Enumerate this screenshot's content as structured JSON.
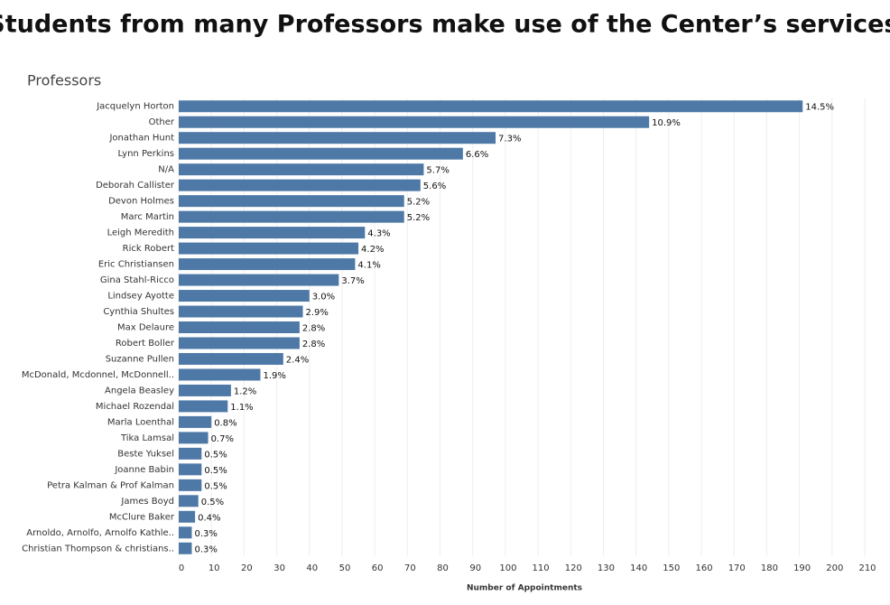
{
  "chart_data": {
    "type": "bar",
    "orientation": "horizontal",
    "title": "Students from many Professors make use of the Center’s services.",
    "y_label": "Professors",
    "x_label": "Number of Appointments",
    "categories": [
      "Jacquelyn Horton",
      "Other",
      "Jonathan Hunt",
      "Lynn Perkins",
      "N/A",
      "Deborah Callister",
      "Devon Holmes",
      "Marc Martin",
      "Leigh Meredith",
      "Rick Robert",
      "Eric Christiansen",
      "Gina Stahl-Ricco",
      "Lindsey Ayotte",
      "Cynthia Shultes",
      "Max Delaure",
      "Robert Boller",
      "Suzanne Pullen",
      "McDonald, Mcdonnel, McDonnell..",
      "Angela Beasley",
      "Michael Rozendal",
      "Marla Loenthal",
      "Tika Lamsal",
      "Beste Yuksel",
      "Joanne Babin",
      "Petra Kalman & Prof Kalman",
      "James Boyd",
      "McClure Baker",
      "Arnoldo, Arnolfo, Arnolfo Kathle..",
      "Christian Thompson & christians.."
    ],
    "values": [
      191,
      144,
      97,
      87,
      75,
      74,
      69,
      69,
      57,
      55,
      54,
      49,
      40,
      38,
      37,
      37,
      32,
      25,
      16,
      15,
      10,
      9,
      7,
      7,
      7,
      6,
      5,
      4,
      4
    ],
    "value_labels": [
      "14.5%",
      "10.9%",
      "7.3%",
      "6.6%",
      "5.7%",
      "5.6%",
      "5.2%",
      "5.2%",
      "4.3%",
      "4.2%",
      "4.1%",
      "3.7%",
      "3.0%",
      "2.9%",
      "2.8%",
      "2.8%",
      "2.4%",
      "1.9%",
      "1.2%",
      "1.1%",
      "0.8%",
      "0.7%",
      "0.5%",
      "0.5%",
      "0.5%",
      "0.5%",
      "0.4%",
      "0.3%",
      "0.3%"
    ],
    "color": "#4e79a7",
    "xlim": [
      0,
      210
    ],
    "xticks": [
      0,
      10,
      20,
      30,
      40,
      50,
      60,
      70,
      80,
      90,
      100,
      110,
      120,
      130,
      140,
      150,
      160,
      170,
      180,
      190,
      200,
      210
    ],
    "grid": true
  }
}
